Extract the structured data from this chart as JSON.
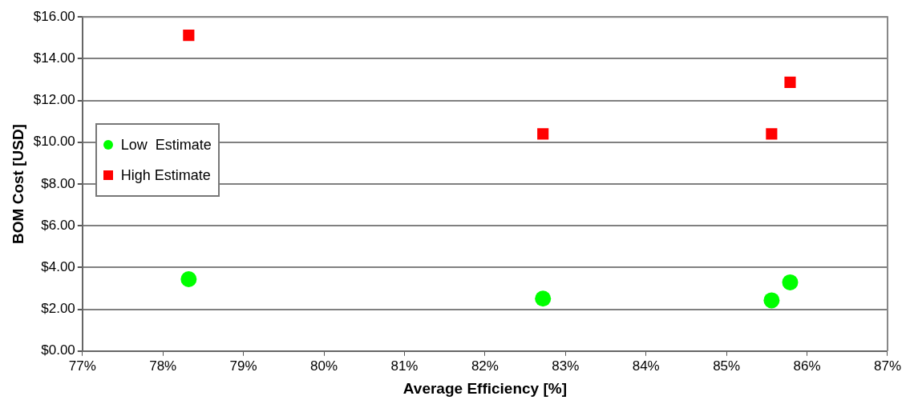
{
  "chart_data": {
    "type": "scatter",
    "xlabel": "Average Efficiency [%]",
    "ylabel": "BOM Cost [USD]",
    "xlim": [
      77,
      87
    ],
    "xticks": [
      {
        "value": 77,
        "label": "77%"
      },
      {
        "value": 78,
        "label": "78%"
      },
      {
        "value": 79,
        "label": "79%"
      },
      {
        "value": 80,
        "label": "80%"
      },
      {
        "value": 81,
        "label": "81%"
      },
      {
        "value": 82,
        "label": "82%"
      },
      {
        "value": 83,
        "label": "83%"
      },
      {
        "value": 84,
        "label": "84%"
      },
      {
        "value": 85,
        "label": "85%"
      },
      {
        "value": 86,
        "label": "86%"
      },
      {
        "value": 87,
        "label": "87%"
      }
    ],
    "ylim": [
      0,
      16
    ],
    "yticks": [
      {
        "value": 0,
        "label": "$0.00"
      },
      {
        "value": 2,
        "label": "$2.00"
      },
      {
        "value": 4,
        "label": "$4.00"
      },
      {
        "value": 6,
        "label": "$6.00"
      },
      {
        "value": 8,
        "label": "$8.00"
      },
      {
        "value": 10,
        "label": "$10.00"
      },
      {
        "value": 12,
        "label": "$12.00"
      },
      {
        "value": 14,
        "label": "$14.00"
      },
      {
        "value": 16,
        "label": "$16.00"
      }
    ],
    "grid": "y",
    "legend": "left",
    "series": [
      {
        "name": "Low  Estimate",
        "color": "#00ff00",
        "marker": "circle",
        "x": [
          78.32,
          82.72,
          85.56,
          85.79
        ],
        "values": [
          3.44,
          2.51,
          2.43,
          3.29
        ]
      },
      {
        "name": "High Estimate",
        "color": "#ff0000",
        "marker": "square",
        "x": [
          78.32,
          82.72,
          85.56,
          85.79
        ],
        "values": [
          15.12,
          10.4,
          10.4,
          12.87
        ]
      }
    ]
  }
}
